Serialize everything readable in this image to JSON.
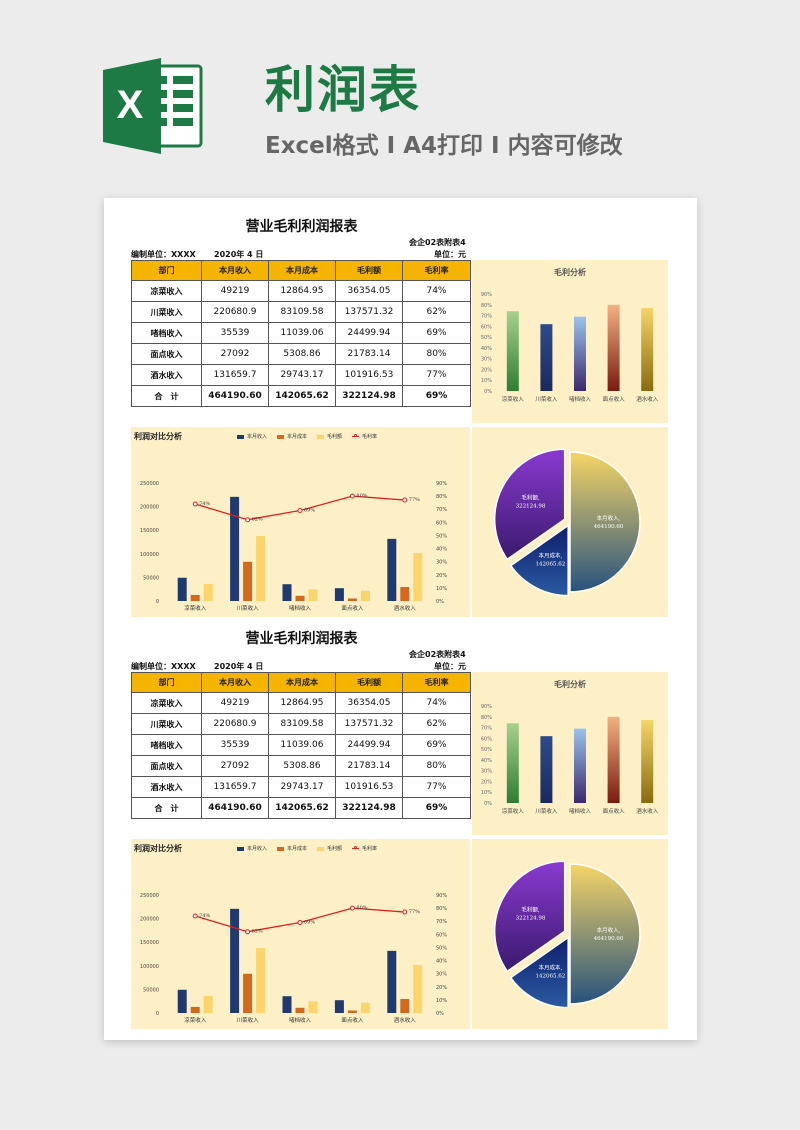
{
  "header": {
    "title": "利润表",
    "subtitle": "Excel格式 I A4打印 I 内容可修改",
    "logo_icon": "excel-logo-icon"
  },
  "colors": {
    "brand_green": "#1e7a45",
    "header_gold": "#f4b400",
    "panel_bg": "#fdf0c7",
    "navy": "#1f3a6e",
    "orange": "#d2691e",
    "light_yellow": "#fcd46c",
    "line_red": "#e02020"
  },
  "sheets": [
    {
      "title": "营业毛利利润报表",
      "code": "会企02表附表4",
      "org_label": "编制单位：XXXX",
      "date": "2020年 4 日",
      "unit": "单位：元",
      "columns": [
        "部门",
        "本月收入",
        "本月成本",
        "毛利额",
        "毛利率"
      ],
      "rows": [
        [
          "凉菜收入",
          "49219",
          "12864.95",
          "36354.05",
          "74%"
        ],
        [
          "川菜收入",
          "220680.9",
          "83109.58",
          "137571.32",
          "62%"
        ],
        [
          "啫档收入",
          "35539",
          "11039.06",
          "24499.94",
          "69%"
        ],
        [
          "面点收入",
          "27092",
          "5308.86",
          "21783.14",
          "80%"
        ],
        [
          "酒水收入",
          "131659.7",
          "29743.17",
          "101916.53",
          "77%"
        ],
        [
          "合　计",
          "464190.60",
          "142065.62",
          "322124.98",
          "69%"
        ]
      ]
    },
    {
      "title": "营业毛利利润报表",
      "code": "会企02表附表4",
      "org_label": "编制单位：XXXX",
      "date": "2020年 4 日",
      "unit": "单位：元",
      "columns": [
        "部门",
        "本月收入",
        "本月成本",
        "毛利额",
        "毛利率"
      ],
      "rows": [
        [
          "凉菜收入",
          "49219",
          "12864.95",
          "36354.05",
          "74%"
        ],
        [
          "川菜收入",
          "220680.9",
          "83109.58",
          "137571.32",
          "62%"
        ],
        [
          "啫档收入",
          "35539",
          "11039.06",
          "24499.94",
          "69%"
        ],
        [
          "面点收入",
          "27092",
          "5308.86",
          "21783.14",
          "80%"
        ],
        [
          "酒水收入",
          "131659.7",
          "29743.17",
          "101916.53",
          "77%"
        ],
        [
          "合　计",
          "464190.60",
          "142065.62",
          "322124.98",
          "69%"
        ]
      ]
    }
  ],
  "chart_data": [
    {
      "type": "bar",
      "title": "毛利分析",
      "categories": [
        "凉菜收入",
        "川菜收入",
        "啫档收入",
        "面点收入",
        "酒水收入"
      ],
      "values": [
        0.74,
        0.62,
        0.69,
        0.8,
        0.77
      ],
      "ylim": [
        0,
        0.9
      ],
      "yticks": [
        "0%",
        "10%",
        "20%",
        "30%",
        "40%",
        "50%",
        "60%",
        "70%",
        "80%",
        "90%"
      ],
      "bar_colors": [
        [
          "#a8d18d",
          "#2e7d32"
        ],
        [
          "#2f4a8a",
          "#1a2a5e"
        ],
        [
          "#9cc3ea",
          "#3a2a6e"
        ],
        [
          "#f4b183",
          "#7a1a10"
        ],
        [
          "#f7d36a",
          "#8a6a10"
        ]
      ]
    },
    {
      "type": "bar",
      "title": "利润对比分析",
      "categories": [
        "凉菜收入",
        "川菜收入",
        "啫档收入",
        "面点收入",
        "酒水收入"
      ],
      "series": [
        {
          "name": "本月收入",
          "values": [
            49219,
            220680.9,
            35539,
            27092,
            131659.7
          ],
          "color": "#1f3a6e"
        },
        {
          "name": "本月成本",
          "values": [
            12864.95,
            83109.58,
            11039.06,
            5308.86,
            29743.17
          ],
          "color": "#d2691e"
        },
        {
          "name": "毛利额",
          "values": [
            36354.05,
            137571.32,
            24499.94,
            21783.14,
            101916.53
          ],
          "color": "#fcd46c"
        }
      ],
      "line_series": {
        "name": "毛利率",
        "values": [
          0.74,
          0.62,
          0.69,
          0.8,
          0.77
        ],
        "labels": [
          "74%",
          "62%",
          "69%",
          "80%",
          "77%"
        ],
        "color": "#e02020"
      },
      "ylim": [
        0,
        250000
      ],
      "yticks": [
        "0",
        "50000",
        "100000",
        "150000",
        "200000",
        "250000"
      ],
      "y2lim": [
        0,
        0.9
      ],
      "y2ticks": [
        "0%",
        "10%",
        "20%",
        "30%",
        "40%",
        "50%",
        "60%",
        "70%",
        "80%",
        "90%"
      ],
      "legend": "top"
    },
    {
      "type": "pie",
      "slices": [
        {
          "label": "本月收入,",
          "value_label": "464190.60",
          "value": 464190.6
        },
        {
          "label": "本月成本,",
          "value_label": "142065.62",
          "value": 142065.62
        },
        {
          "label": "毛利额,",
          "value_label": "322124.98",
          "value": 322124.98
        }
      ]
    }
  ]
}
